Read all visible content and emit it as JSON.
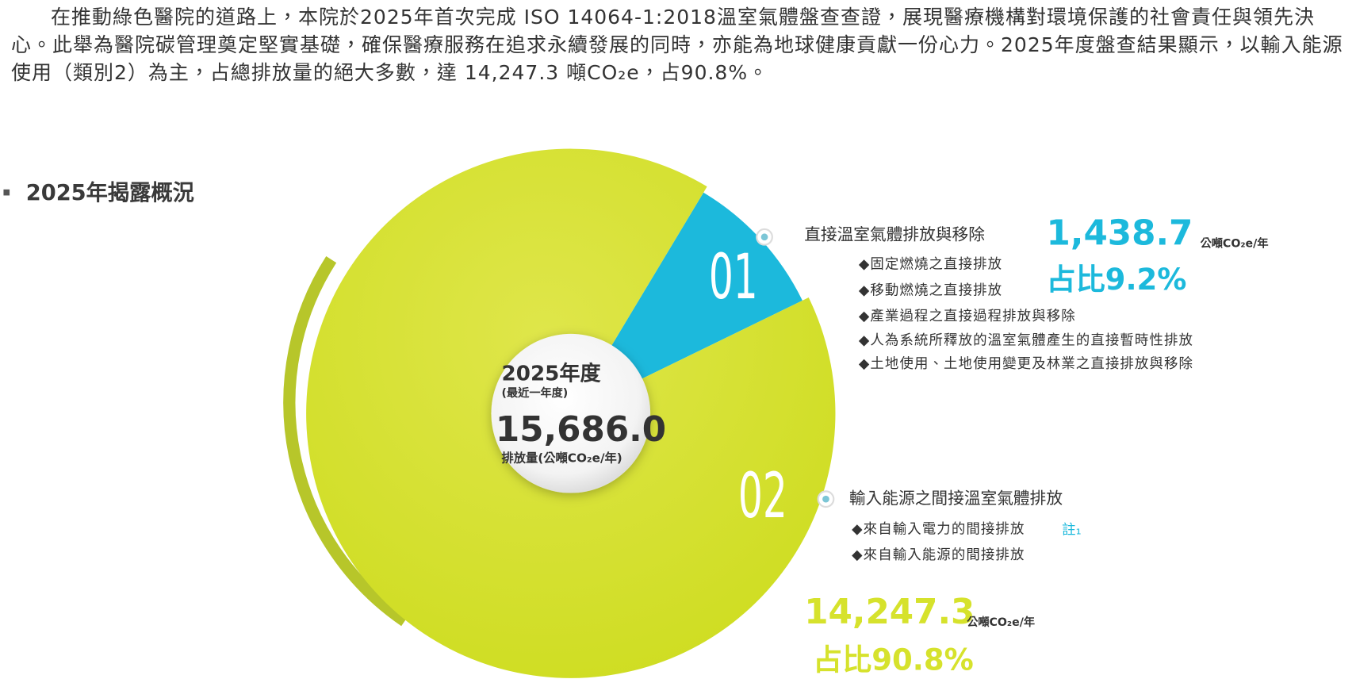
{
  "paragraph": "在推動綠色醫院的道路上，本院於2025年首次完成 ISO 14064-1:2018溫室氣體盤查查證，展現醫療機構對環境保護的社會責任與領先決心。此舉為醫院碳管理奠定堅實基礎，確保醫療服務在追求永續發展的同時，亦能為地球健康貢獻一份心力。2025年度盤查結果顯示，以輸入能源使用（類別2）為主，占總排放量的絕大多數，達 14,247.3 噸CO₂e，占90.8%。",
  "section_title": "2025年揭露概況",
  "chart_data": {
    "type": "pie",
    "center_year": "2025年度",
    "center_note": "(最近一年度)",
    "total": 15686.0,
    "total_label": "15,686.0",
    "total_caption": "排放量(公噸CO₂e/年)",
    "categories": [
      "直接溫室氣體排放與移除",
      "輸入能源之間接溫室氣體排放"
    ],
    "numbers": [
      "01",
      "02"
    ],
    "values": [
      1438.7,
      14247.3
    ],
    "value_labels": [
      "1,438.7",
      "14,247.3"
    ],
    "unit": "公噸CO₂e/年",
    "percent_labels": [
      "占比9.2%",
      "占比90.8%"
    ],
    "colors": [
      "#1cb9dc",
      "#d6e22c"
    ],
    "details": [
      [
        "◆固定燃燒之直接排放",
        "◆移動燃燒之直接排放",
        "◆產業過程之直接過程排放與移除",
        "◆人為系統所釋放的溫室氣體產生的直接暫時性排放",
        "◆土地使用、土地使用變更及林業之直接排放與移除"
      ],
      [
        "◆來自輸入電力的間接排放",
        "◆來自輸入能源的間接排放"
      ]
    ],
    "note_mark": "註₁"
  }
}
